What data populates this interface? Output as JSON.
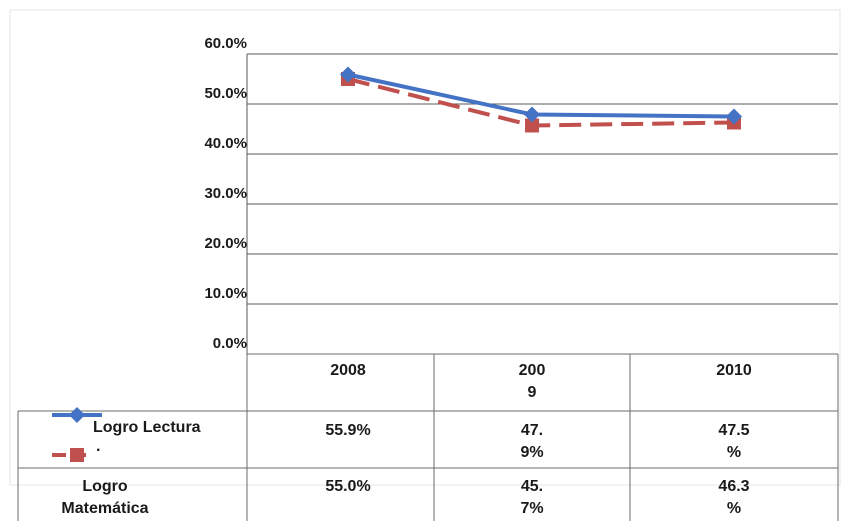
{
  "colors": {
    "lectura": "#4472C4",
    "matematica": "#C0504D",
    "grid": "#595959",
    "text": "#1a1a1a"
  },
  "chart_data": {
    "type": "line",
    "title": "",
    "xlabel": "",
    "ylabel": "",
    "ylim": [
      0,
      60
    ],
    "grid": true,
    "legend": "in data table",
    "categories": [
      "2008",
      "2009",
      "2010"
    ],
    "y_ticks": [
      "0.0%",
      "10.0%",
      "20.0%",
      "30.0%",
      "40.0%",
      "50.0%",
      "60.0%"
    ],
    "series": [
      {
        "name": "Logro Lectura",
        "values": [
          55.9,
          47.9,
          47.5
        ],
        "marker": "diamond",
        "line": "solid"
      },
      {
        "name": "Logro Matemática",
        "values": [
          55.0,
          45.7,
          46.3
        ],
        "marker": "square",
        "line": "dashed"
      }
    ]
  },
  "table": {
    "headers": [
      "2008",
      "200\n9",
      "2010"
    ],
    "rows": [
      {
        "label": "Logro Lectura",
        "cells": [
          "55.9%",
          "47.\n9%",
          "47.5\n%"
        ]
      },
      {
        "label": "Logro\nMatemática",
        "cells": [
          "55.0%",
          "45.\n7%",
          "46.3\n%"
        ]
      }
    ],
    "legend_dot": "·"
  }
}
